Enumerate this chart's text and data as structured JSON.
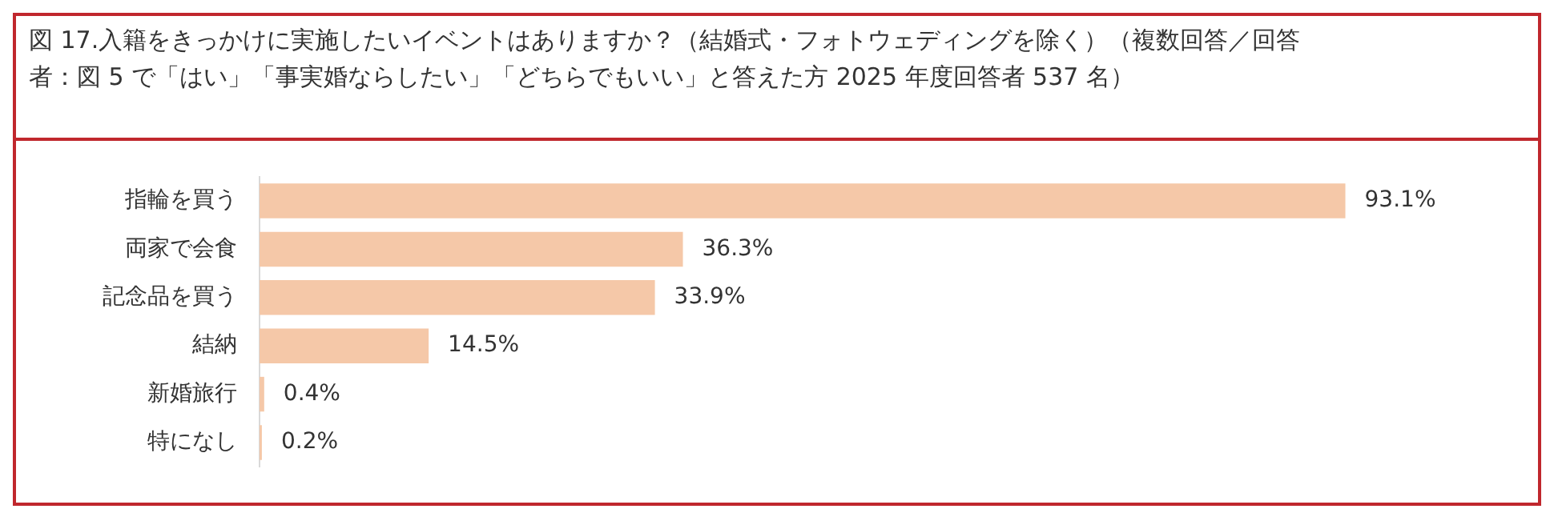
{
  "chart_data": {
    "type": "bar",
    "orientation": "horizontal",
    "title": "図 17.入籍をきっかけに実施したいイベントはありますか？（結婚式・フォトウェディングを除く）（複数回答／回答者：図 5 で「はい」「事実婚ならしたい」「どちらでもいい」と答えた方 2025 年度回答者 537 名）",
    "categories": [
      "指輪を買う",
      "両家で会食",
      "記念品を買う",
      "結納",
      "新婚旅行",
      "特になし"
    ],
    "values": [
      93.1,
      36.3,
      33.9,
      14.5,
      0.4,
      0.2
    ],
    "value_labels": [
      "93.1%",
      "36.3%",
      "33.9%",
      "14.5%",
      "0.4%",
      "0.2%"
    ],
    "color": "#f5c8a8"
  }
}
